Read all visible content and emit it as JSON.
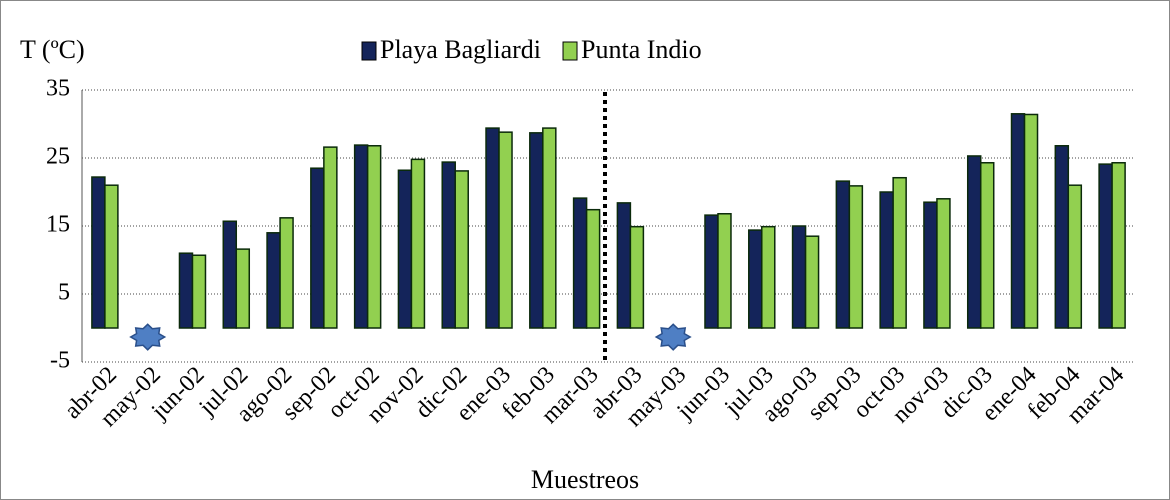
{
  "chart_data": {
    "type": "bar",
    "y_label": "T (ºC)",
    "x_label": "Muestreos",
    "categories": [
      "abr-02",
      "may-02",
      "jun-02",
      "jul-02",
      "ago-02",
      "sep-02",
      "oct-02",
      "nov-02",
      "dic-02",
      "ene-03",
      "feb-03",
      "mar-03",
      "abr-03",
      "may-03",
      "jun-03",
      "jul-03",
      "ago-03",
      "sep-03",
      "oct-03",
      "nov-03",
      "dic-03",
      "ene-04",
      "feb-04",
      "mar-04"
    ],
    "series": [
      {
        "name": "Playa Bagliardi",
        "color": "#14245a",
        "values": [
          22.2,
          null,
          11.0,
          15.7,
          14.0,
          23.5,
          26.9,
          23.2,
          24.4,
          29.4,
          28.7,
          19.1,
          18.4,
          null,
          16.6,
          14.4,
          15.0,
          21.6,
          20.0,
          18.5,
          25.3,
          31.5,
          26.8,
          24.1
        ]
      },
      {
        "name": "Punta Indio",
        "color": "#92d050",
        "values": [
          21.0,
          null,
          10.7,
          11.6,
          16.2,
          26.6,
          26.8,
          24.8,
          23.1,
          28.8,
          29.4,
          17.4,
          14.9,
          null,
          16.8,
          14.9,
          13.5,
          20.9,
          22.1,
          19.0,
          24.3,
          31.4,
          21.0,
          24.3
        ]
      }
    ],
    "ylim": [
      -5,
      35
    ],
    "yticks": [
      -5,
      5,
      15,
      25,
      35
    ],
    "grid": true,
    "legend": "top"
  }
}
